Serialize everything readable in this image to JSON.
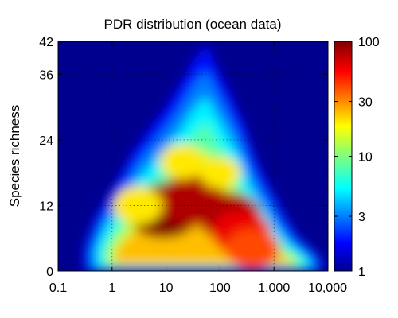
{
  "chart_data": {
    "type": "heatmap",
    "title": "PDR distribution (ocean data)",
    "xlabel": "",
    "ylabel": "Species richness",
    "x_scale": "log",
    "xlim": [
      0.1,
      10000
    ],
    "ylim": [
      0,
      42
    ],
    "x_ticks": [
      0.1,
      1,
      10,
      100,
      1000,
      10000
    ],
    "x_tick_labels": [
      "0.1",
      "1",
      "10",
      "100",
      "1,000",
      "10,000"
    ],
    "y_ticks": [
      0,
      12,
      24,
      36,
      42
    ],
    "y_tick_labels": [
      "0",
      "12",
      "24",
      "36",
      "42"
    ],
    "grid": true,
    "colorbar": {
      "scale": "log",
      "range": [
        1,
        100
      ],
      "ticks": [
        1,
        3,
        10,
        30,
        100
      ],
      "tick_labels": [
        "1",
        "3",
        "10",
        "30",
        "100"
      ],
      "colormap": "jet",
      "placement": "right"
    },
    "density_profile": {
      "y": [
        0,
        2,
        4,
        6,
        10,
        14,
        18,
        22,
        26,
        30,
        34,
        38,
        41
      ],
      "x_min": [
        0.3,
        0.3,
        0.3,
        0.35,
        0.5,
        0.9,
        1.5,
        2.5,
        5,
        10,
        18,
        30,
        50
      ],
      "x_max": [
        8000,
        8000,
        5000,
        3000,
        1600,
        1000,
        600,
        400,
        300,
        200,
        130,
        80,
        60
      ]
    },
    "hot_regions": [
      {
        "x": 9,
        "y": 11,
        "value": 100
      },
      {
        "x": 30,
        "y": 13,
        "value": 80
      },
      {
        "x": 150,
        "y": 10,
        "value": 80
      },
      {
        "x": 250,
        "y": 7,
        "value": 60
      },
      {
        "x": 400,
        "y": 4,
        "value": 40
      },
      {
        "x": 3,
        "y": 12,
        "value": 20
      },
      {
        "x": 20,
        "y": 20,
        "value": 20
      },
      {
        "x": 100,
        "y": 18,
        "value": 20
      }
    ]
  }
}
